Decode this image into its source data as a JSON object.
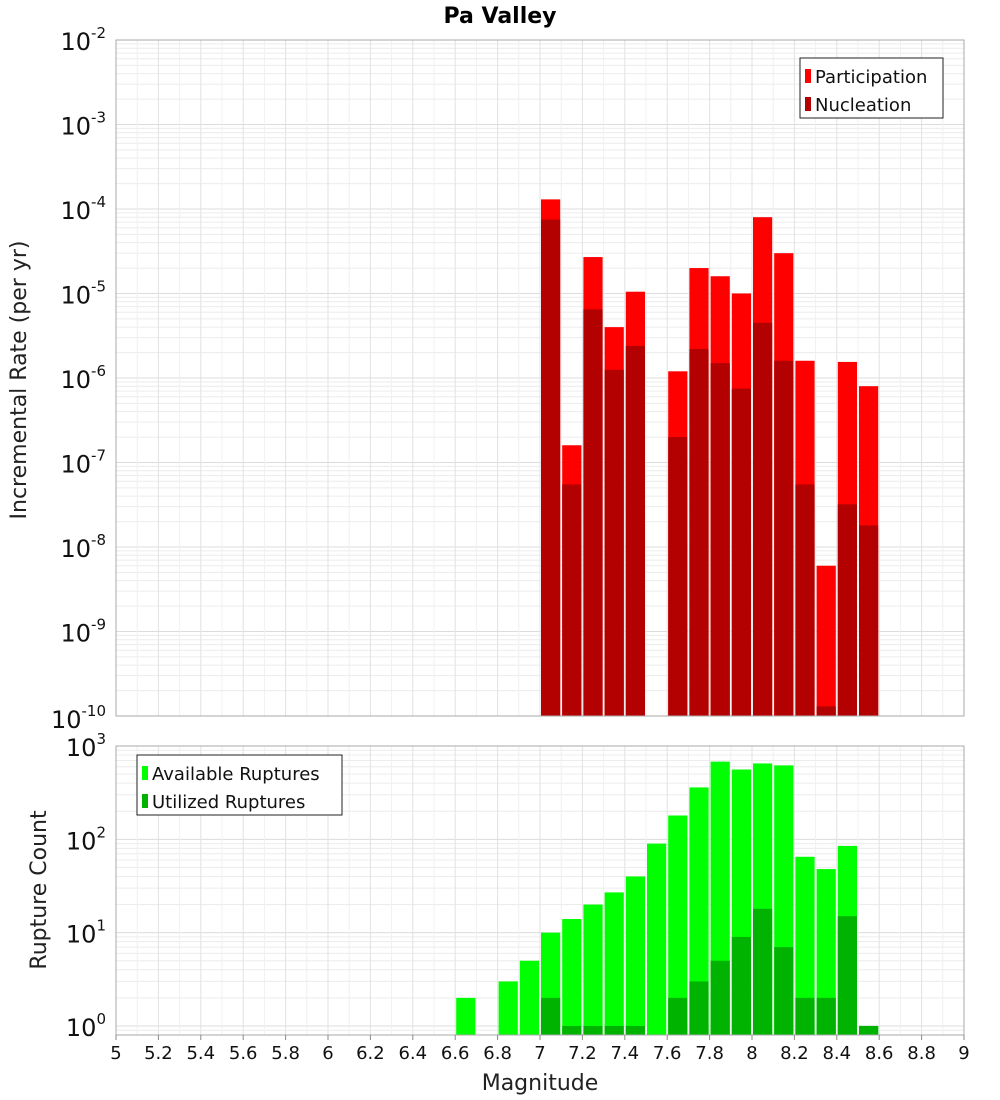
{
  "chart_data": [
    {
      "type": "bar",
      "title": "Pa Valley",
      "xlabel": "Magnitude",
      "ylabel": "Incremental Rate (per yr)",
      "x_range": [
        5,
        9
      ],
      "y_range": [
        1e-10,
        0.01
      ],
      "y_scale": "log",
      "legend_position": "top-right",
      "grid": true,
      "series": [
        {
          "name": "Participation",
          "color": "#ff0000",
          "points": [
            {
              "x": 7.05,
              "y": 0.00013
            },
            {
              "x": 7.15,
              "y": 1.6e-07
            },
            {
              "x": 7.25,
              "y": 2.7e-05
            },
            {
              "x": 7.35,
              "y": 4e-06
            },
            {
              "x": 7.45,
              "y": 1.05e-05
            },
            {
              "x": 7.65,
              "y": 1.2e-06
            },
            {
              "x": 7.75,
              "y": 2e-05
            },
            {
              "x": 7.85,
              "y": 1.6e-05
            },
            {
              "x": 7.95,
              "y": 1e-05
            },
            {
              "x": 8.05,
              "y": 8e-05
            },
            {
              "x": 8.15,
              "y": 3e-05
            },
            {
              "x": 8.25,
              "y": 1.6e-06
            },
            {
              "x": 8.35,
              "y": 6e-09
            },
            {
              "x": 8.45,
              "y": 1.55e-06
            },
            {
              "x": 8.55,
              "y": 8e-07
            }
          ]
        },
        {
          "name": "Nucleation",
          "color": "#b30000",
          "points": [
            {
              "x": 7.05,
              "y": 7.5e-05
            },
            {
              "x": 7.15,
              "y": 5.5e-08
            },
            {
              "x": 7.25,
              "y": 6.5e-06
            },
            {
              "x": 7.35,
              "y": 1.25e-06
            },
            {
              "x": 7.45,
              "y": 2.4e-06
            },
            {
              "x": 7.65,
              "y": 2e-07
            },
            {
              "x": 7.75,
              "y": 2.2e-06
            },
            {
              "x": 7.85,
              "y": 1.5e-06
            },
            {
              "x": 7.95,
              "y": 7.5e-07
            },
            {
              "x": 8.05,
              "y": 4.5e-06
            },
            {
              "x": 8.15,
              "y": 1.6e-06
            },
            {
              "x": 8.25,
              "y": 5.5e-08
            },
            {
              "x": 8.35,
              "y": 1.3e-10
            },
            {
              "x": 8.45,
              "y": 3.2e-08
            },
            {
              "x": 8.55,
              "y": 1.8e-08
            }
          ]
        }
      ]
    },
    {
      "type": "bar",
      "title": "",
      "xlabel": "Magnitude",
      "ylabel": "Rupture Count",
      "x_range": [
        5,
        9
      ],
      "x_ticks": [
        "5",
        "5.2",
        "5.4",
        "5.6",
        "5.8",
        "6",
        "6.2",
        "6.4",
        "6.6",
        "6.8",
        "7",
        "7.2",
        "7.4",
        "7.6",
        "7.8",
        "8",
        "8.2",
        "8.4",
        "8.6",
        "8.8",
        "9"
      ],
      "y_range": [
        0.8,
        1000
      ],
      "y_scale": "log",
      "legend_position": "top-left",
      "grid": true,
      "series": [
        {
          "name": "Available Ruptures",
          "color": "#00ff00",
          "points": [
            {
              "x": 6.65,
              "y": 2
            },
            {
              "x": 6.85,
              "y": 3
            },
            {
              "x": 6.95,
              "y": 5
            },
            {
              "x": 7.05,
              "y": 10
            },
            {
              "x": 7.15,
              "y": 14
            },
            {
              "x": 7.25,
              "y": 20
            },
            {
              "x": 7.35,
              "y": 27
            },
            {
              "x": 7.45,
              "y": 40
            },
            {
              "x": 7.55,
              "y": 90
            },
            {
              "x": 7.65,
              "y": 180
            },
            {
              "x": 7.75,
              "y": 360
            },
            {
              "x": 7.85,
              "y": 680
            },
            {
              "x": 7.95,
              "y": 560
            },
            {
              "x": 8.05,
              "y": 650
            },
            {
              "x": 8.15,
              "y": 620
            },
            {
              "x": 8.25,
              "y": 65
            },
            {
              "x": 8.35,
              "y": 48
            },
            {
              "x": 8.45,
              "y": 85
            },
            {
              "x": 8.55,
              "y": 1
            }
          ]
        },
        {
          "name": "Utilized Ruptures",
          "color": "#00b300",
          "points": [
            {
              "x": 7.05,
              "y": 2
            },
            {
              "x": 7.15,
              "y": 1
            },
            {
              "x": 7.25,
              "y": 1
            },
            {
              "x": 7.35,
              "y": 1
            },
            {
              "x": 7.45,
              "y": 1
            },
            {
              "x": 7.65,
              "y": 2
            },
            {
              "x": 7.75,
              "y": 3
            },
            {
              "x": 7.85,
              "y": 5
            },
            {
              "x": 7.95,
              "y": 9
            },
            {
              "x": 8.05,
              "y": 18
            },
            {
              "x": 8.15,
              "y": 7
            },
            {
              "x": 8.25,
              "y": 2
            },
            {
              "x": 8.35,
              "y": 2
            },
            {
              "x": 8.45,
              "y": 15
            },
            {
              "x": 8.55,
              "y": 1
            }
          ]
        }
      ]
    }
  ]
}
